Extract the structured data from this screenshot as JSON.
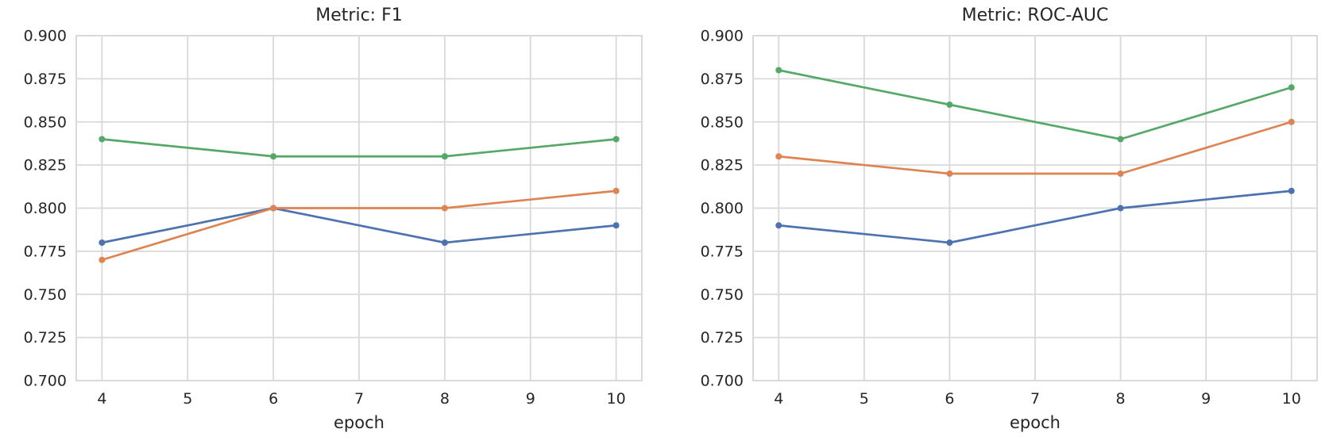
{
  "styles": {
    "grid_color": "#d9d9d9",
    "frame_color": "#d9d9d9",
    "text_color": "#262626",
    "background": "#ffffff"
  },
  "chart_data": [
    {
      "type": "line",
      "title": "Metric: F1",
      "xlabel": "epoch",
      "ylabel": "",
      "x": [
        4,
        6,
        8,
        10
      ],
      "xlim": [
        3.7,
        10.3
      ],
      "ylim": [
        0.7,
        0.9
      ],
      "xticks": [
        4,
        5,
        6,
        7,
        8,
        9,
        10
      ],
      "xtick_labels": [
        "4",
        "5",
        "6",
        "7",
        "8",
        "9",
        "10"
      ],
      "yticks": [
        0.7,
        0.725,
        0.75,
        0.775,
        0.8,
        0.825,
        0.85,
        0.875,
        0.9
      ],
      "ytick_labels": [
        "0.700",
        "0.725",
        "0.750",
        "0.775",
        "0.800",
        "0.825",
        "0.850",
        "0.875",
        "0.900"
      ],
      "grid": true,
      "legend": false,
      "series": [
        {
          "name": "blue-series",
          "color": "#4C72B0",
          "values": [
            0.78,
            0.8,
            0.78,
            0.79
          ]
        },
        {
          "name": "orange-series",
          "color": "#DD8452",
          "values": [
            0.77,
            0.8,
            0.8,
            0.81
          ]
        },
        {
          "name": "green-series",
          "color": "#55A868",
          "values": [
            0.84,
            0.83,
            0.83,
            0.84
          ]
        }
      ]
    },
    {
      "type": "line",
      "title": "Metric: ROC-AUC",
      "xlabel": "epoch",
      "ylabel": "",
      "x": [
        4,
        6,
        8,
        10
      ],
      "xlim": [
        3.7,
        10.3
      ],
      "ylim": [
        0.7,
        0.9
      ],
      "xticks": [
        4,
        5,
        6,
        7,
        8,
        9,
        10
      ],
      "xtick_labels": [
        "4",
        "5",
        "6",
        "7",
        "8",
        "9",
        "10"
      ],
      "yticks": [
        0.7,
        0.725,
        0.75,
        0.775,
        0.8,
        0.825,
        0.85,
        0.875,
        0.9
      ],
      "ytick_labels": [
        "0.700",
        "0.725",
        "0.750",
        "0.775",
        "0.800",
        "0.825",
        "0.850",
        "0.875",
        "0.900"
      ],
      "grid": true,
      "legend": false,
      "series": [
        {
          "name": "blue-series",
          "color": "#4C72B0",
          "values": [
            0.79,
            0.78,
            0.8,
            0.81
          ]
        },
        {
          "name": "orange-series",
          "color": "#DD8452",
          "values": [
            0.83,
            0.82,
            0.82,
            0.85
          ]
        },
        {
          "name": "green-series",
          "color": "#55A868",
          "values": [
            0.88,
            0.86,
            0.84,
            0.87
          ]
        }
      ]
    }
  ]
}
